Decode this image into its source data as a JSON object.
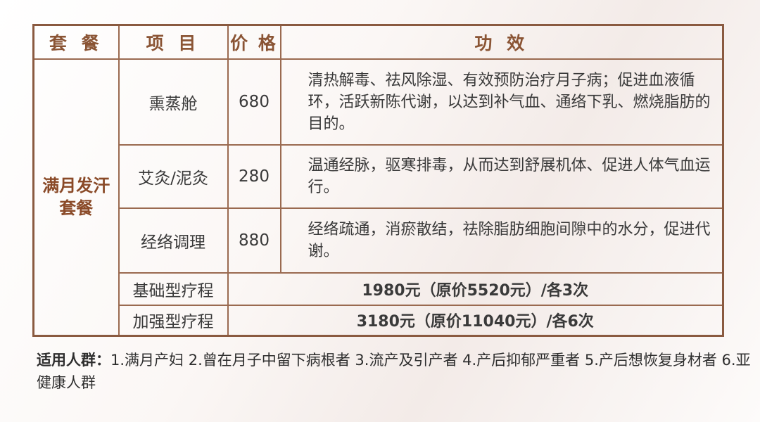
{
  "table": {
    "headers": [
      "套 餐",
      "项 目",
      "价 格",
      "功 效"
    ],
    "package": "满月发汗套餐",
    "items": [
      {
        "name": "熏蒸舱",
        "price": "680",
        "effect": "清热解毒、祛风除湿、有效预防治疗月子病；促进血液循环，活跃新陈代谢，以达到补气血、通络下乳、燃烧脂肪的目的。"
      },
      {
        "name": "艾灸/泥灸",
        "price": "280",
        "effect": "温通经脉，驱寒排毒，从而达到舒展机体、促进人体气血运行。"
      },
      {
        "name": "经络调理",
        "price": "880",
        "effect": "经络疏通，消瘀散结，祛除脂肪细胞间隙中的水分，促进代谢。"
      }
    ],
    "courses": [
      {
        "name": "基础型疗程",
        "price": "1980元（原价5520元）/各3次"
      },
      {
        "name": "加强型疗程",
        "price": "3180元（原价11040元）/各6次"
      }
    ]
  },
  "note": {
    "label": "适用人群：",
    "text": "1.满月产妇  2.曾在月子中留下病根者  3.流产及引产者  4.产后抑郁严重者 5.产后想恢复身材者 6.亚健康人群"
  }
}
